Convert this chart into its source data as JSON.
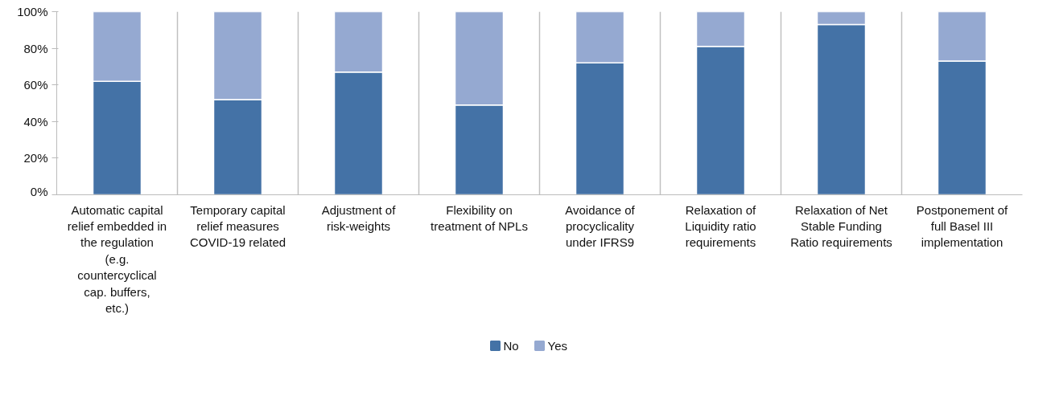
{
  "chart_data": {
    "type": "bar",
    "stacked": true,
    "categories": [
      "Automatic capital relief embedded in the regulation (e.g. countercyclical cap. buffers, etc.)",
      "Temporary capital relief measures COVID-19 related",
      "Adjustment of risk-weights",
      "Flexibility on treatment of NPLs",
      "Avoidance of procyclicality under IFRS9",
      "Relaxation of Liquidity ratio requirements",
      "Relaxation of Net Stable Funding Ratio requirements",
      "Postponement of full Basel III implementation"
    ],
    "series": [
      {
        "name": "No",
        "color": "#4472a6",
        "values": [
          62,
          52,
          67,
          49,
          72,
          81,
          93,
          73
        ]
      },
      {
        "name": "Yes",
        "color": "#95a9d1",
        "values": [
          38,
          48,
          33,
          51,
          28,
          19,
          7,
          27
        ]
      }
    ],
    "ylim": [
      0,
      100
    ],
    "yticks": [
      {
        "value": 0,
        "label": "0%"
      },
      {
        "value": 20,
        "label": "20%"
      },
      {
        "value": 40,
        "label": "40%"
      },
      {
        "value": 60,
        "label": "60%"
      },
      {
        "value": 80,
        "label": "80%"
      },
      {
        "value": 100,
        "label": "100%"
      }
    ],
    "grid": "x",
    "legend": "bottom"
  }
}
